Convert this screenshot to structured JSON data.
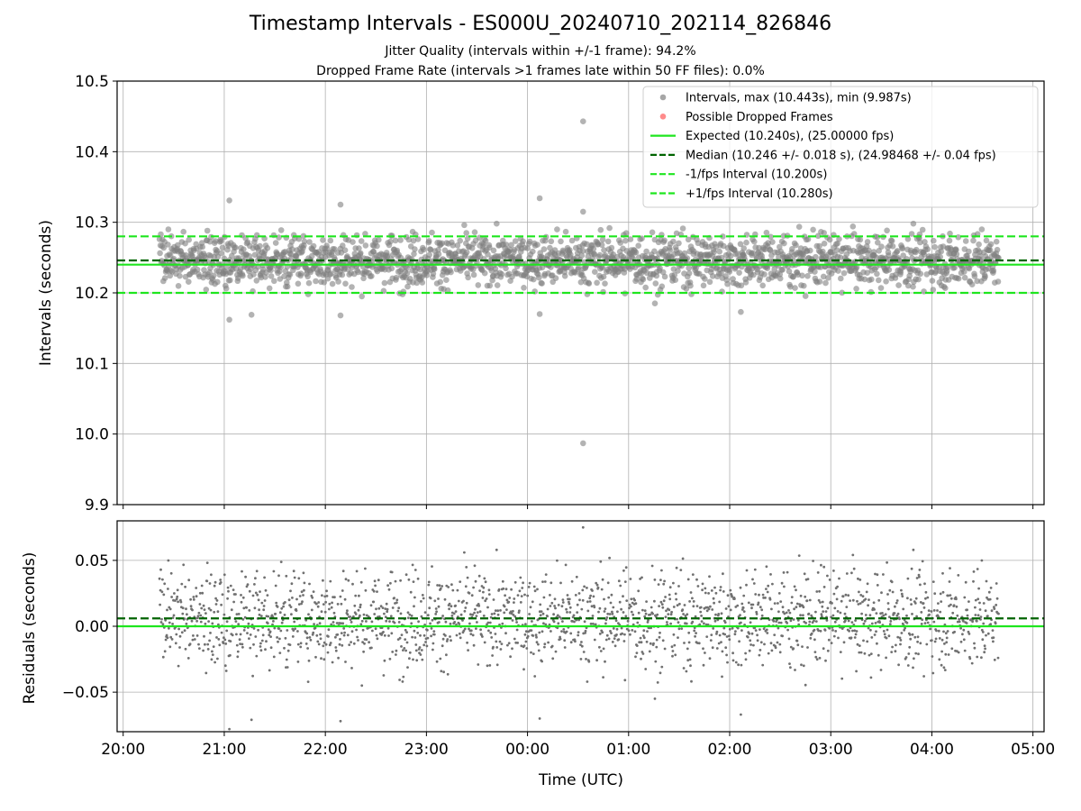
{
  "chart_data": [
    {
      "type": "scatter",
      "title": "Timestamp Intervals - ES000U_20240710_202114_826846",
      "subtitle_lines": [
        "Jitter Quality (intervals within +/-1 frame): 94.2%",
        "Dropped Frame Rate (intervals >1 frames late within 50 FF files): 0.0%"
      ],
      "xlabel": "",
      "ylabel": "Intervals (seconds)",
      "ylim": [
        9.9,
        10.5
      ],
      "yticks": [
        "9.9",
        "10.0",
        "10.1",
        "10.2",
        "10.3",
        "10.4",
        "10.5"
      ],
      "ytick_values": [
        9.9,
        10.0,
        10.1,
        10.2,
        10.3,
        10.4,
        10.5
      ],
      "xlim_hours": [
        19.94,
        29.11
      ],
      "grid": true,
      "legend_placement": "top-right",
      "series": [
        {
          "name": "Intervals, max (10.443s), min (9.987s)",
          "kind": "scatter",
          "color": "#808080",
          "start_hour": 20.36,
          "end_hour": 28.66,
          "n_points": 2000,
          "median": 10.246,
          "std": 0.018,
          "max": 10.443,
          "min": 9.987,
          "notable_points": [
            {
              "x": 24.55,
              "y": 10.443
            },
            {
              "x": 24.55,
              "y": 9.987
            },
            {
              "x": 21.05,
              "y": 10.331
            },
            {
              "x": 22.15,
              "y": 10.325
            },
            {
              "x": 24.12,
              "y": 10.334
            },
            {
              "x": 24.55,
              "y": 10.315
            },
            {
              "x": 21.05,
              "y": 10.162
            },
            {
              "x": 21.27,
              "y": 10.169
            },
            {
              "x": 22.15,
              "y": 10.168
            },
            {
              "x": 24.12,
              "y": 10.17
            },
            {
              "x": 26.11,
              "y": 10.173
            },
            {
              "x": 25.26,
              "y": 10.185
            }
          ]
        },
        {
          "name": "Possible Dropped Frames",
          "kind": "scatter",
          "color": "#ff5a5a",
          "points": []
        },
        {
          "name": "Expected (10.240s), (25.00000 fps)",
          "kind": "hline",
          "y": 10.24,
          "color": "#1ee61e",
          "style": "solid"
        },
        {
          "name": "Median (10.246 +/- 0.018 s), (24.98468 +/- 0.04 fps)",
          "kind": "hline",
          "y": 10.246,
          "color": "#006400",
          "style": "dashed"
        },
        {
          "name": "-1/fps Interval (10.200s)",
          "kind": "hline",
          "y": 10.2,
          "color": "#1ee61e",
          "style": "dashed"
        },
        {
          "name": "+1/fps Interval (10.280s)",
          "kind": "hline",
          "y": 10.28,
          "color": "#1ee61e",
          "style": "dashed"
        }
      ]
    },
    {
      "type": "scatter",
      "title": "",
      "xlabel": "Time (UTC)",
      "ylabel": "Residuals (seconds)",
      "ylim": [
        -0.08,
        0.08
      ],
      "yticks": [
        "−0.05",
        "0.00",
        "0.05"
      ],
      "ytick_values": [
        -0.05,
        0.0,
        0.05
      ],
      "xlim_hours": [
        19.94,
        29.11
      ],
      "xticks": [
        "20:00",
        "21:00",
        "22:00",
        "23:00",
        "00:00",
        "01:00",
        "02:00",
        "03:00",
        "04:00",
        "05:00"
      ],
      "xtick_hours": [
        20,
        21,
        22,
        23,
        24,
        25,
        26,
        27,
        28,
        29
      ],
      "grid": true,
      "series": [
        {
          "name": "",
          "kind": "scatter",
          "color": "#707070",
          "residual_of": "intervals",
          "expected": 10.24
        },
        {
          "name": "",
          "kind": "hline",
          "y": 0.0,
          "color": "#1ee61e",
          "style": "solid"
        },
        {
          "name": "",
          "kind": "hline",
          "y": 0.006,
          "color": "#006400",
          "style": "dashed"
        }
      ]
    }
  ]
}
